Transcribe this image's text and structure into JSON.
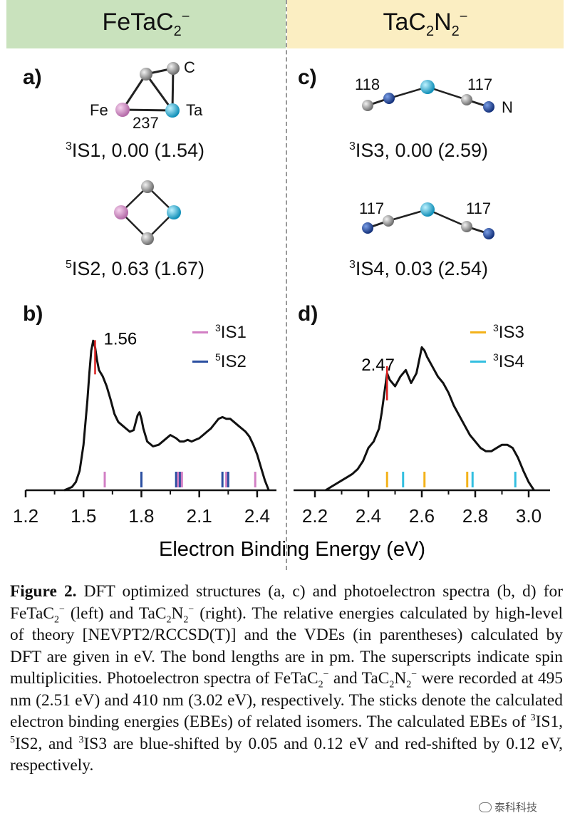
{
  "headers": {
    "left_base": "FeTaC",
    "left_sub": "2",
    "left_sup": "−",
    "right_base": "TaC",
    "right_sub1": "2",
    "right_mid": "N",
    "right_sub2": "2",
    "right_sup": "−"
  },
  "panels": {
    "a": {
      "label": "a)",
      "atoms": {
        "c": "C",
        "fe": "Fe",
        "ta": "Ta"
      },
      "bond_length": "237",
      "iso1": {
        "sup": "3",
        "name": "IS1",
        "text": ", 0.00 (1.54)"
      },
      "iso2": {
        "sup": "5",
        "name": "IS2",
        "text": ", 0.63 (1.67)"
      }
    },
    "c": {
      "label": "c)",
      "iso3_bonds": {
        "left": "118",
        "right": "117"
      },
      "n_atom": "N",
      "iso3": {
        "sup": "3",
        "name": "IS3",
        "text": ", 0.00 (2.59)"
      },
      "iso4_bonds": {
        "left": "117",
        "right": "117"
      },
      "iso4": {
        "sup": "3",
        "name": "IS4",
        "text": ", 0.03 (2.54)"
      }
    },
    "b": {
      "label": "b)",
      "peak_label": "1.56",
      "legend": [
        {
          "sup": "3",
          "name": "IS1",
          "color": "#d27fc4"
        },
        {
          "sup": "5",
          "name": "IS2",
          "color": "#2a4ea0"
        }
      ]
    },
    "d": {
      "label": "d)",
      "peak_label": "2.47",
      "legend": [
        {
          "sup": "3",
          "name": "IS3",
          "color": "#f3b21a"
        },
        {
          "sup": "3",
          "name": "IS4",
          "color": "#33bfe0"
        }
      ]
    }
  },
  "chart_data": [
    {
      "type": "line",
      "panel": "b",
      "xlim": [
        1.2,
        2.5
      ],
      "ticks": [
        "1.2",
        "1.5",
        "1.8",
        "2.1",
        "2.4"
      ],
      "tick_values": [
        1.2,
        1.5,
        1.8,
        2.1,
        2.4
      ],
      "x": [
        1.4,
        1.42,
        1.44,
        1.46,
        1.48,
        1.5,
        1.52,
        1.53,
        1.54,
        1.55,
        1.56,
        1.57,
        1.58,
        1.6,
        1.62,
        1.64,
        1.66,
        1.68,
        1.7,
        1.72,
        1.74,
        1.76,
        1.78,
        1.79,
        1.8,
        1.81,
        1.83,
        1.86,
        1.89,
        1.92,
        1.95,
        1.98,
        2.0,
        2.02,
        2.04,
        2.06,
        2.08,
        2.1,
        2.12,
        2.14,
        2.16,
        2.18,
        2.2,
        2.22,
        2.24,
        2.26,
        2.28,
        2.3,
        2.32,
        2.34,
        2.36,
        2.38,
        2.4,
        2.42,
        2.44,
        2.46
      ],
      "y": [
        0.0,
        0.01,
        0.02,
        0.05,
        0.12,
        0.28,
        0.55,
        0.72,
        0.86,
        0.92,
        0.88,
        0.8,
        0.74,
        0.7,
        0.64,
        0.56,
        0.47,
        0.42,
        0.4,
        0.38,
        0.36,
        0.37,
        0.46,
        0.48,
        0.44,
        0.38,
        0.3,
        0.27,
        0.28,
        0.31,
        0.34,
        0.32,
        0.3,
        0.3,
        0.31,
        0.3,
        0.31,
        0.32,
        0.34,
        0.36,
        0.38,
        0.41,
        0.44,
        0.45,
        0.44,
        0.44,
        0.42,
        0.4,
        0.38,
        0.36,
        0.33,
        0.28,
        0.22,
        0.14,
        0.06,
        0.0
      ],
      "peak": {
        "x": 1.56,
        "label": "1.56",
        "color": "#d92020"
      },
      "sticks": [
        {
          "x": 1.61,
          "series": "3IS1"
        },
        {
          "x": 1.8,
          "series": "5IS2"
        },
        {
          "x": 1.98,
          "series": "5IS2"
        },
        {
          "x": 1.99,
          "series": "3IS1"
        },
        {
          "x": 2.0,
          "series": "5IS2"
        },
        {
          "x": 2.01,
          "series": "3IS1"
        },
        {
          "x": 2.22,
          "series": "5IS2"
        },
        {
          "x": 2.24,
          "series": "3IS1"
        },
        {
          "x": 2.25,
          "series": "5IS2"
        },
        {
          "x": 2.39,
          "series": "3IS1"
        }
      ],
      "series_colors": {
        "3IS1": "#d27fc4",
        "5IS2": "#2a4ea0"
      }
    },
    {
      "type": "line",
      "panel": "d",
      "xlim": [
        2.12,
        3.08
      ],
      "ticks": [
        "2.2",
        "2.4",
        "2.6",
        "2.8",
        "3.0"
      ],
      "tick_values": [
        2.2,
        2.4,
        2.6,
        2.8,
        3.0
      ],
      "x": [
        2.24,
        2.26,
        2.28,
        2.3,
        2.32,
        2.34,
        2.36,
        2.38,
        2.4,
        2.42,
        2.44,
        2.45,
        2.46,
        2.47,
        2.48,
        2.5,
        2.52,
        2.54,
        2.56,
        2.58,
        2.6,
        2.61,
        2.62,
        2.64,
        2.66,
        2.68,
        2.7,
        2.72,
        2.74,
        2.76,
        2.78,
        2.8,
        2.82,
        2.84,
        2.86,
        2.88,
        2.9,
        2.92,
        2.94,
        2.96,
        2.98,
        3.0,
        3.02
      ],
      "y": [
        0.0,
        0.02,
        0.04,
        0.06,
        0.08,
        0.1,
        0.13,
        0.18,
        0.26,
        0.3,
        0.38,
        0.48,
        0.6,
        0.72,
        0.68,
        0.64,
        0.7,
        0.74,
        0.66,
        0.72,
        0.88,
        0.86,
        0.82,
        0.76,
        0.7,
        0.66,
        0.6,
        0.52,
        0.46,
        0.4,
        0.34,
        0.3,
        0.26,
        0.24,
        0.24,
        0.26,
        0.28,
        0.28,
        0.26,
        0.2,
        0.12,
        0.05,
        0.0
      ],
      "peak": {
        "x": 2.47,
        "label": "2.47",
        "color": "#d92020"
      },
      "sticks": [
        {
          "x": 2.47,
          "series": "3IS3"
        },
        {
          "x": 2.53,
          "series": "3IS4"
        },
        {
          "x": 2.61,
          "series": "3IS3"
        },
        {
          "x": 2.77,
          "series": "3IS3"
        },
        {
          "x": 2.79,
          "series": "3IS4"
        },
        {
          "x": 2.95,
          "series": "3IS4"
        }
      ],
      "series_colors": {
        "3IS3": "#f3b21a",
        "3IS4": "#33bfe0"
      }
    }
  ],
  "xlabel": "Electron Binding Energy (eV)",
  "caption": {
    "fig": "Figure 2.",
    "p1": " DFT optimized structures (a, c) and photoelectron spectra (b, d) for FeTaC",
    "p1_sub": "2",
    "p1_sup": "−",
    "p2": " (left) and TaC",
    "p2_sub": "2",
    "p2_mid": "N",
    "p2_sub2": "2",
    "p2_sup": "−",
    "p3": " (right). The relative energies calculated by high-level of theory [NEVPT2/RCCSD(T)] and the VDEs (in parentheses) calculated by DFT are given in eV. The bond lengths are in pm. The superscripts indicate spin multiplicities. Photoelectron spectra of FeTaC",
    "p3_sub": "2",
    "p3_sup": "−",
    "p4": " and TaC",
    "p4_sub": "2",
    "p4_mid": "N",
    "p4_sub2": "2",
    "p4_sup": "−",
    "p5": " were recorded at 495 nm (2.51 eV) and 410 nm (3.02 eV), respectively. The sticks denote the calculated electron binding energies (EBEs) of related isomers. The calculated EBEs of ",
    "s1": "3",
    "n1": "IS1, ",
    "s2": "5",
    "n2": "IS2, and ",
    "s3": "3",
    "n3": "IS3 are blue-shifted by 0.05 and 0.12 eV and red-shifted by 0.12 eV, respectively."
  },
  "watermark": "泰科科技"
}
